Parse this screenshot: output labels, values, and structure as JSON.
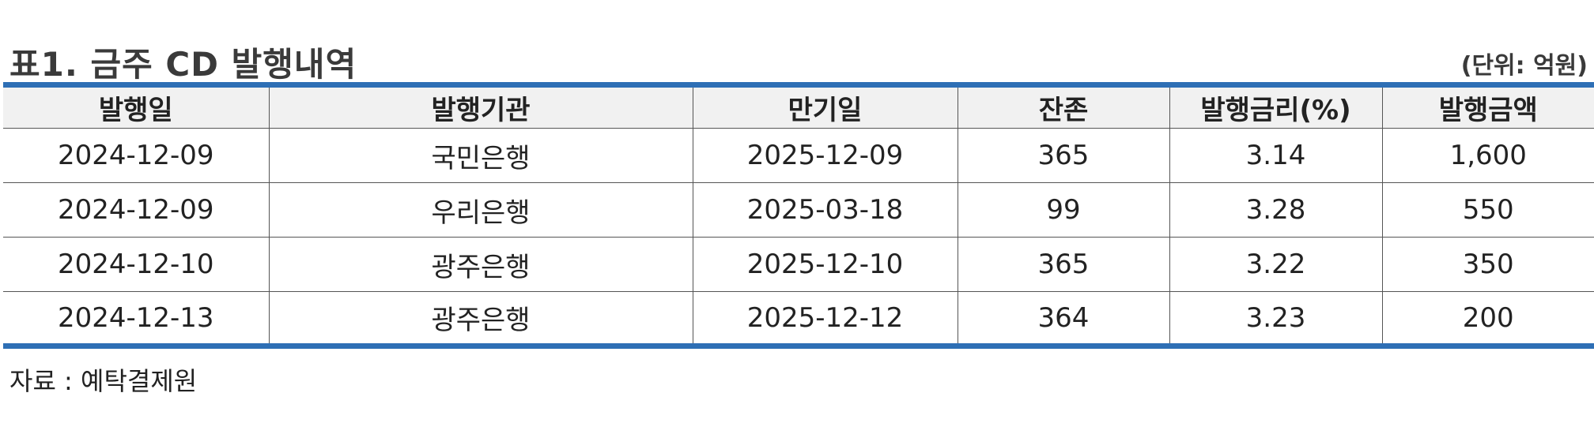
{
  "title": "표1. 금주 CD 발행내역",
  "unit": "(단위: 억원)",
  "table": {
    "headers": [
      "발행일",
      "발행기관",
      "만기일",
      "잔존",
      "발행금리(%)",
      "발행금액"
    ],
    "rows": [
      [
        "2024-12-09",
        "국민은행",
        "2025-12-09",
        "365",
        "3.14",
        "1,600"
      ],
      [
        "2024-12-09",
        "우리은행",
        "2025-03-18",
        "99",
        "3.28",
        "550"
      ],
      [
        "2024-12-10",
        "광주은행",
        "2025-12-10",
        "365",
        "3.22",
        "350"
      ],
      [
        "2024-12-13",
        "광주은행",
        "2025-12-12",
        "364",
        "3.23",
        "200"
      ]
    ]
  },
  "source": "자료 : 예탁결제원",
  "colors": {
    "rule": "#2e6fb5",
    "header_bg": "#f1f1f1",
    "title_text": "#3a3a3a"
  }
}
